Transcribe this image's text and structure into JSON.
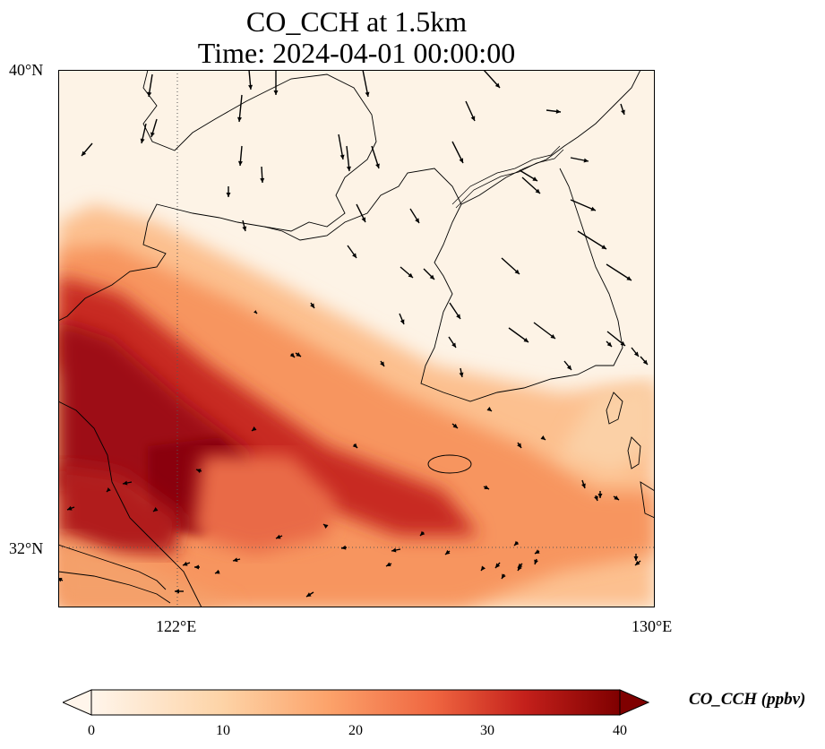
{
  "title": {
    "line1": "CO_CCH at 1.5km",
    "line2": "Time: 2024-04-01 00:00:00"
  },
  "axes": {
    "lat_ticks": [
      {
        "label": "40°N",
        "lat": 40
      },
      {
        "label": "32°N",
        "lat": 32
      }
    ],
    "lon_ticks": [
      {
        "label": "122°E",
        "lon": 122
      },
      {
        "label": "130°E",
        "lon": 130
      }
    ],
    "extent": {
      "lon_min": 120,
      "lon_max": 130,
      "lat_min": 31,
      "lat_max": 40
    },
    "gridlines": "dotted at 122°E and 32°N"
  },
  "colorbar": {
    "title": "CO_CCH (ppbv)",
    "ticks": [
      "0",
      "10",
      "20",
      "30",
      "40"
    ],
    "range": [
      0,
      40
    ],
    "extend": "both",
    "colors": [
      "#fff5eb",
      "#fdd9b4",
      "#fda762",
      "#f4784b",
      "#d62d20",
      "#a50f15",
      "#7f0000"
    ]
  },
  "field": {
    "description_colors": {
      "low": "#fdf3e6",
      "mid": "#f7a06a",
      "high": "#a50f15"
    }
  }
}
